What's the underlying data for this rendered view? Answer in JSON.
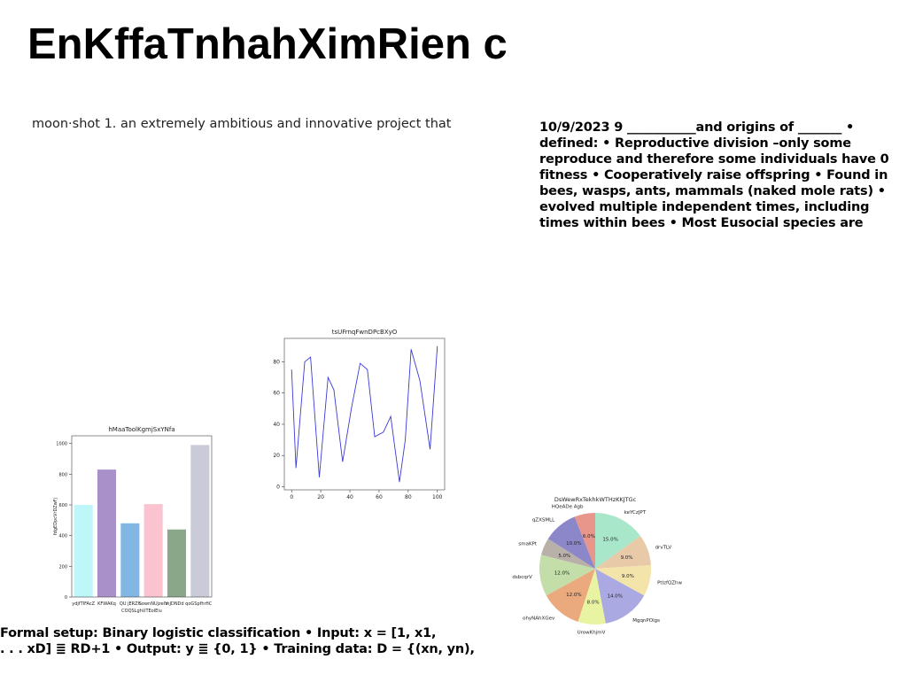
{
  "title": "EnKffaTnhahXimRien c",
  "intro": "moon·shot 1. an extremely ambitious and innovative project that",
  "right_text": {
    "lines": [
      "10/9/2023 9 ___________and origins of _______ •",
      "defined: • Reproductive division –only some",
      "reproduce and therefore some individuals have 0",
      "fitness • Cooperatively raise offspring • Found in",
      "bees, wasps, ants, mammals (naked mole rats) •",
      "evolved multiple independent times, including",
      "times within bees • Most Eusocial species are"
    ]
  },
  "bottom_text": {
    "lines": [
      "Formal setup: Binary logistic classification • Input: x = [1, x1,",
      ". . . xD] ≣ RD+1 • Output: y ≣ {0, 1} • Training data: D = {(xn, yn),"
    ]
  },
  "chart_data": [
    {
      "type": "bar",
      "title": "hMaaToolKgmjSxYNfa",
      "ylabel": "fdgEDpcVrDZwFj",
      "categories": [
        "ydjfTIFAcZ",
        "KFWAKq",
        "QU jERZh",
        "SownNUjzeIV",
        "mJDNDd q",
        "oGSpfhrfiC"
      ],
      "xlabel": "COQSLghUTEolEiu",
      "values": [
        600,
        830,
        480,
        605,
        440,
        990
      ],
      "colors": [
        "#bff6fa",
        "#aa90c9",
        "#82b7e3",
        "#fbc3d0",
        "#8aa789",
        "#c9cbd9"
      ],
      "ylim": [
        0,
        1050
      ],
      "yticks": [
        0,
        200,
        400,
        600,
        800,
        1000
      ]
    },
    {
      "type": "line",
      "title": "tsUFrnqFwnDPcBXyO",
      "x": [
        0,
        3,
        9,
        13,
        19,
        25,
        29,
        35,
        41,
        47,
        52,
        57,
        63,
        68,
        74,
        78,
        82,
        88,
        95,
        100
      ],
      "values": [
        75,
        12,
        80,
        83,
        6,
        70,
        62,
        16,
        50,
        79,
        75,
        32,
        35,
        45,
        3,
        30,
        88,
        68,
        24,
        90
      ],
      "color": "#3a3ad6",
      "xlim": [
        -5,
        105
      ],
      "ylim": [
        -2,
        95
      ],
      "xticks": [
        0,
        20,
        40,
        60,
        80,
        100
      ],
      "yticks": [
        0,
        20,
        40,
        60,
        80
      ]
    },
    {
      "type": "pie",
      "title": "DsWewRxTekhkWTHzKKJTGc",
      "categories": [
        "keYCzJPT",
        "drvTLV",
        "PtlzfQZhw",
        "MgqnPOlgs",
        "UrowKhjmV",
        "ohyNAhXGev",
        "dsbcqrV",
        "smaKPt",
        "qZXSMLL",
        "HQeADe Agb"
      ],
      "values": [
        15,
        9,
        9,
        14,
        8,
        12,
        12,
        5,
        10,
        6
      ],
      "value_labels": [
        "15.0%",
        "9.0%",
        "9.0%",
        "14.0%",
        "8.0%",
        "12.0%",
        "12.0%",
        "5.0%",
        "10.0%",
        "6.0%"
      ],
      "colors": [
        "#a8e7c9",
        "#e8caa9",
        "#f3e4a9",
        "#aaa9e1",
        "#e9f4a2",
        "#eba97e",
        "#c3dea9",
        "#b9b1a9",
        "#8b87c8",
        "#e8958b"
      ]
    }
  ]
}
